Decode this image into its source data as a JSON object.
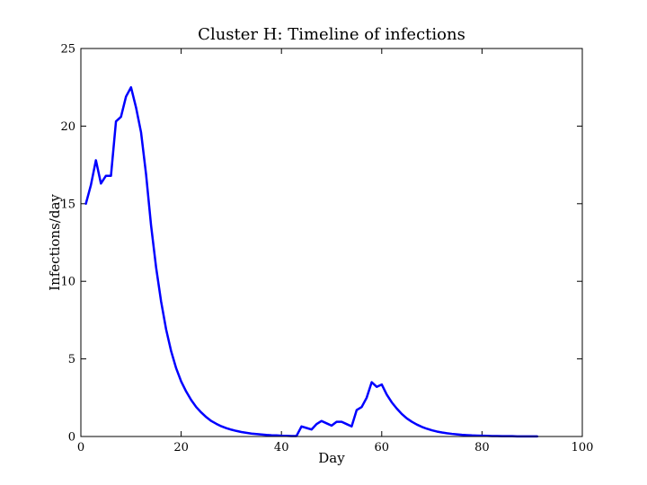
{
  "chart_data": {
    "type": "line",
    "title": "Cluster H: Timeline of infections",
    "xlabel": "Day",
    "ylabel": "Infections/day",
    "xlim": [
      0,
      100
    ],
    "ylim": [
      0,
      25
    ],
    "xticks": [
      "0",
      "20",
      "40",
      "60",
      "80",
      "100"
    ],
    "yticks": [
      "0",
      "5",
      "10",
      "15",
      "20",
      "25"
    ],
    "grid": false,
    "line_color": "#0000ff",
    "series": [
      {
        "x": [
          1,
          2,
          3,
          4,
          5,
          6,
          7,
          8,
          9,
          10,
          11,
          12,
          13,
          14,
          15,
          16,
          17,
          18,
          19,
          20,
          21,
          22,
          23,
          24,
          25,
          26,
          27,
          28,
          29,
          30,
          31,
          32,
          33,
          34,
          35,
          36,
          37,
          38,
          39,
          40,
          41,
          42,
          43,
          44,
          45,
          46,
          47,
          48,
          49,
          50,
          51,
          52,
          53,
          54,
          55,
          56,
          57,
          58,
          59,
          60,
          61,
          62,
          63,
          64,
          65,
          66,
          67,
          68,
          69,
          70,
          71,
          72,
          73,
          74,
          75,
          76,
          77,
          78,
          79,
          80,
          81,
          82,
          83,
          84,
          85,
          86,
          87,
          88,
          89,
          90,
          91
        ],
        "values": [
          15.0,
          16.2,
          17.8,
          16.3,
          16.8,
          16.8,
          20.3,
          20.6,
          21.9,
          22.5,
          21.2,
          19.6,
          16.9,
          13.6,
          10.9,
          8.7,
          6.9,
          5.5,
          4.4,
          3.55,
          2.9,
          2.35,
          1.9,
          1.55,
          1.25,
          1.0,
          0.82,
          0.66,
          0.54,
          0.44,
          0.36,
          0.29,
          0.24,
          0.19,
          0.16,
          0.13,
          0.1,
          0.08,
          0.07,
          0.05,
          0.04,
          0.03,
          0.03,
          0.65,
          0.55,
          0.45,
          0.8,
          1.0,
          0.85,
          0.7,
          0.95,
          0.95,
          0.8,
          0.65,
          1.7,
          1.9,
          2.5,
          3.5,
          3.2,
          3.35,
          2.7,
          2.2,
          1.8,
          1.45,
          1.17,
          0.95,
          0.77,
          0.62,
          0.5,
          0.4,
          0.32,
          0.26,
          0.21,
          0.17,
          0.14,
          0.11,
          0.09,
          0.07,
          0.06,
          0.05,
          0.04,
          0.03,
          0.03,
          0.02,
          0.02,
          0.02,
          0.01,
          0.01,
          0.01,
          0.01,
          0.01
        ]
      }
    ]
  }
}
